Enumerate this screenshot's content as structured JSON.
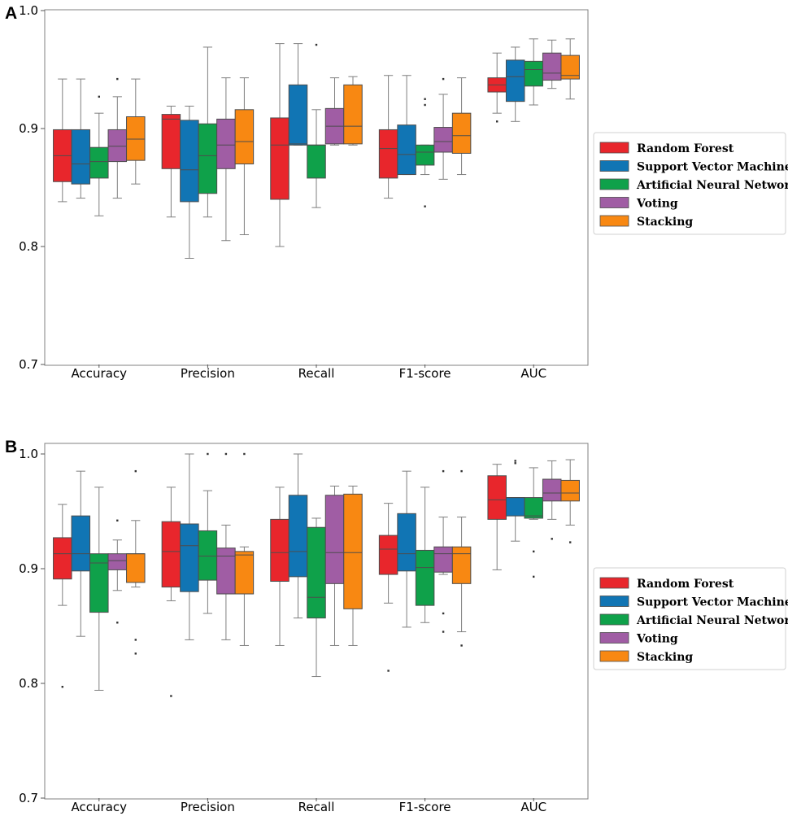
{
  "chart_data": [
    {
      "panel": "A",
      "type": "box",
      "categories": [
        "Accuracy",
        "Precision",
        "Recall",
        "F1-score",
        "AUC"
      ],
      "ylim": [
        0.7,
        1.0
      ],
      "yticks": [
        "0.7",
        "0.8",
        "0.9",
        "1.0"
      ],
      "ytick_values": [
        0.7,
        0.8,
        0.9,
        1.0
      ],
      "legend": [
        "Random Forest",
        "Support Vector Machine",
        "Artificial Neural Network",
        "Voting",
        "Stacking"
      ],
      "legend_position": "right",
      "series": [
        {
          "name": "Random Forest",
          "boxes": [
            {
              "lw": 0.838,
              "q1": 0.855,
              "med": 0.877,
              "q3": 0.899,
              "uw": 0.942,
              "outliers": []
            },
            {
              "lw": 0.825,
              "q1": 0.866,
              "med": 0.908,
              "q3": 0.912,
              "uw": 0.919,
              "outliers": []
            },
            {
              "lw": 0.8,
              "q1": 0.84,
              "med": 0.886,
              "q3": 0.909,
              "uw": 0.972,
              "outliers": []
            },
            {
              "lw": 0.841,
              "q1": 0.858,
              "med": 0.883,
              "q3": 0.899,
              "uw": 0.945,
              "outliers": []
            },
            {
              "lw": 0.913,
              "q1": 0.931,
              "med": 0.937,
              "q3": 0.943,
              "uw": 0.964,
              "outliers": [
                0.906
              ]
            }
          ]
        },
        {
          "name": "Support Vector Machine",
          "boxes": [
            {
              "lw": 0.841,
              "q1": 0.853,
              "med": 0.87,
              "q3": 0.899,
              "uw": 0.942,
              "outliers": []
            },
            {
              "lw": 0.79,
              "q1": 0.838,
              "med": 0.865,
              "q3": 0.907,
              "uw": 0.919,
              "outliers": []
            },
            {
              "lw": 0.886,
              "q1": 0.886,
              "med": 0.887,
              "q3": 0.937,
              "uw": 0.972,
              "outliers": []
            },
            {
              "lw": 0.861,
              "q1": 0.861,
              "med": 0.878,
              "q3": 0.903,
              "uw": 0.945,
              "outliers": []
            },
            {
              "lw": 0.906,
              "q1": 0.923,
              "med": 0.944,
              "q3": 0.958,
              "uw": 0.969,
              "outliers": []
            }
          ]
        },
        {
          "name": "Artificial Neural Network",
          "boxes": [
            {
              "lw": 0.826,
              "q1": 0.858,
              "med": 0.872,
              "q3": 0.884,
              "uw": 0.913,
              "outliers": [
                0.927
              ]
            },
            {
              "lw": 0.825,
              "q1": 0.845,
              "med": 0.877,
              "q3": 0.904,
              "uw": 0.969,
              "outliers": []
            },
            {
              "lw": 0.833,
              "q1": 0.858,
              "med": 0.886,
              "q3": 0.886,
              "uw": 0.916,
              "outliers": [
                0.971
              ]
            },
            {
              "lw": 0.861,
              "q1": 0.869,
              "med": 0.88,
              "q3": 0.886,
              "uw": 0.886,
              "outliers": [
                0.834,
                0.92,
                0.925
              ]
            },
            {
              "lw": 0.92,
              "q1": 0.936,
              "med": 0.95,
              "q3": 0.957,
              "uw": 0.976,
              "outliers": []
            }
          ]
        },
        {
          "name": "Voting",
          "boxes": [
            {
              "lw": 0.841,
              "q1": 0.872,
              "med": 0.885,
              "q3": 0.899,
              "uw": 0.927,
              "outliers": [
                0.942
              ]
            },
            {
              "lw": 0.805,
              "q1": 0.866,
              "med": 0.886,
              "q3": 0.908,
              "uw": 0.943,
              "outliers": []
            },
            {
              "lw": 0.886,
              "q1": 0.887,
              "med": 0.902,
              "q3": 0.917,
              "uw": 0.943,
              "outliers": []
            },
            {
              "lw": 0.857,
              "q1": 0.88,
              "med": 0.889,
              "q3": 0.901,
              "uw": 0.929,
              "outliers": [
                0.942
              ]
            },
            {
              "lw": 0.934,
              "q1": 0.941,
              "med": 0.947,
              "q3": 0.964,
              "uw": 0.975,
              "outliers": []
            }
          ]
        },
        {
          "name": "Stacking",
          "boxes": [
            {
              "lw": 0.853,
              "q1": 0.873,
              "med": 0.891,
              "q3": 0.91,
              "uw": 0.942,
              "outliers": []
            },
            {
              "lw": 0.81,
              "q1": 0.87,
              "med": 0.889,
              "q3": 0.916,
              "uw": 0.943,
              "outliers": []
            },
            {
              "lw": 0.886,
              "q1": 0.887,
              "med": 0.902,
              "q3": 0.937,
              "uw": 0.944,
              "outliers": []
            },
            {
              "lw": 0.861,
              "q1": 0.879,
              "med": 0.894,
              "q3": 0.913,
              "uw": 0.943,
              "outliers": []
            },
            {
              "lw": 0.925,
              "q1": 0.942,
              "med": 0.945,
              "q3": 0.962,
              "uw": 0.976,
              "outliers": []
            }
          ]
        }
      ]
    },
    {
      "panel": "B",
      "type": "box",
      "categories": [
        "Accuracy",
        "Precision",
        "Recall",
        "F1-score",
        "AUC"
      ],
      "ylim": [
        0.7,
        1.01
      ],
      "yticks": [
        "0.7",
        "0.8",
        "0.9",
        "1.0"
      ],
      "ytick_values": [
        0.7,
        0.8,
        0.9,
        1.0
      ],
      "legend": [
        "Random Forest",
        "Support Vector Machine",
        "Artificial Neural Network",
        "Voting",
        "Stacking"
      ],
      "legend_position": "right",
      "series": [
        {
          "name": "Random Forest",
          "boxes": [
            {
              "lw": 0.868,
              "q1": 0.891,
              "med": 0.913,
              "q3": 0.927,
              "uw": 0.956,
              "outliers": [
                0.797
              ]
            },
            {
              "lw": 0.872,
              "q1": 0.884,
              "med": 0.915,
              "q3": 0.941,
              "uw": 0.971,
              "outliers": [
                0.789
              ]
            },
            {
              "lw": 0.833,
              "q1": 0.889,
              "med": 0.914,
              "q3": 0.943,
              "uw": 0.971,
              "outliers": []
            },
            {
              "lw": 0.87,
              "q1": 0.895,
              "med": 0.917,
              "q3": 0.929,
              "uw": 0.957,
              "outliers": [
                0.811
              ]
            },
            {
              "lw": 0.899,
              "q1": 0.943,
              "med": 0.96,
              "q3": 0.981,
              "uw": 0.991,
              "outliers": []
            }
          ]
        },
        {
          "name": "Support Vector Machine",
          "boxes": [
            {
              "lw": 0.841,
              "q1": 0.898,
              "med": 0.913,
              "q3": 0.946,
              "uw": 0.985,
              "outliers": []
            },
            {
              "lw": 0.838,
              "q1": 0.88,
              "med": 0.92,
              "q3": 0.939,
              "uw": 1.0,
              "outliers": []
            },
            {
              "lw": 0.857,
              "q1": 0.893,
              "med": 0.915,
              "q3": 0.964,
              "uw": 1.0,
              "outliers": []
            },
            {
              "lw": 0.849,
              "q1": 0.898,
              "med": 0.913,
              "q3": 0.948,
              "uw": 0.985,
              "outliers": []
            },
            {
              "lw": 0.924,
              "q1": 0.946,
              "med": 0.962,
              "q3": 0.962,
              "uw": 0.962,
              "outliers": [
                0.992,
                0.994
              ]
            }
          ]
        },
        {
          "name": "Artificial Neural Network",
          "boxes": [
            {
              "lw": 0.794,
              "q1": 0.862,
              "med": 0.905,
              "q3": 0.913,
              "uw": 0.971,
              "outliers": []
            },
            {
              "lw": 0.861,
              "q1": 0.89,
              "med": 0.911,
              "q3": 0.933,
              "uw": 0.968,
              "outliers": [
                1.0
              ]
            },
            {
              "lw": 0.806,
              "q1": 0.857,
              "med": 0.875,
              "q3": 0.936,
              "uw": 0.944,
              "outliers": []
            },
            {
              "lw": 0.853,
              "q1": 0.868,
              "med": 0.901,
              "q3": 0.916,
              "uw": 0.971,
              "outliers": []
            },
            {
              "lw": 0.943,
              "q1": 0.944,
              "med": 0.946,
              "q3": 0.962,
              "uw": 0.988,
              "outliers": [
                0.893,
                0.915
              ]
            }
          ]
        },
        {
          "name": "Voting",
          "boxes": [
            {
              "lw": 0.881,
              "q1": 0.899,
              "med": 0.907,
              "q3": 0.913,
              "uw": 0.925,
              "outliers": [
                0.853,
                0.942
              ]
            },
            {
              "lw": 0.838,
              "q1": 0.878,
              "med": 0.911,
              "q3": 0.918,
              "uw": 0.938,
              "outliers": [
                1.0
              ]
            },
            {
              "lw": 0.833,
              "q1": 0.887,
              "med": 0.914,
              "q3": 0.964,
              "uw": 0.972,
              "outliers": []
            },
            {
              "lw": 0.895,
              "q1": 0.897,
              "med": 0.913,
              "q3": 0.919,
              "uw": 0.945,
              "outliers": [
                0.845,
                0.861,
                0.985
              ]
            },
            {
              "lw": 0.943,
              "q1": 0.959,
              "med": 0.966,
              "q3": 0.978,
              "uw": 0.994,
              "outliers": [
                0.926
              ]
            }
          ]
        },
        {
          "name": "Stacking",
          "boxes": [
            {
              "lw": 0.884,
              "q1": 0.888,
              "med": 0.913,
              "q3": 0.913,
              "uw": 0.942,
              "outliers": [
                0.826,
                0.838,
                0.985
              ]
            },
            {
              "lw": 0.833,
              "q1": 0.878,
              "med": 0.912,
              "q3": 0.915,
              "uw": 0.919,
              "outliers": [
                1.0
              ]
            },
            {
              "lw": 0.833,
              "q1": 0.865,
              "med": 0.914,
              "q3": 0.965,
              "uw": 0.972,
              "outliers": []
            },
            {
              "lw": 0.845,
              "q1": 0.887,
              "med": 0.913,
              "q3": 0.919,
              "uw": 0.945,
              "outliers": [
                0.833,
                0.985
              ]
            },
            {
              "lw": 0.938,
              "q1": 0.959,
              "med": 0.966,
              "q3": 0.977,
              "uw": 0.995,
              "outliers": [
                0.923
              ]
            }
          ]
        }
      ]
    }
  ],
  "colors": {
    "Random Forest": "#e8262c",
    "Support Vector Machine": "#1175b4",
    "Artificial Neural Network": "#0fa14a",
    "Voting": "#a05da4",
    "Stacking": "#f88812",
    "whisker": "#7f7f7f",
    "axis": "#808080"
  }
}
